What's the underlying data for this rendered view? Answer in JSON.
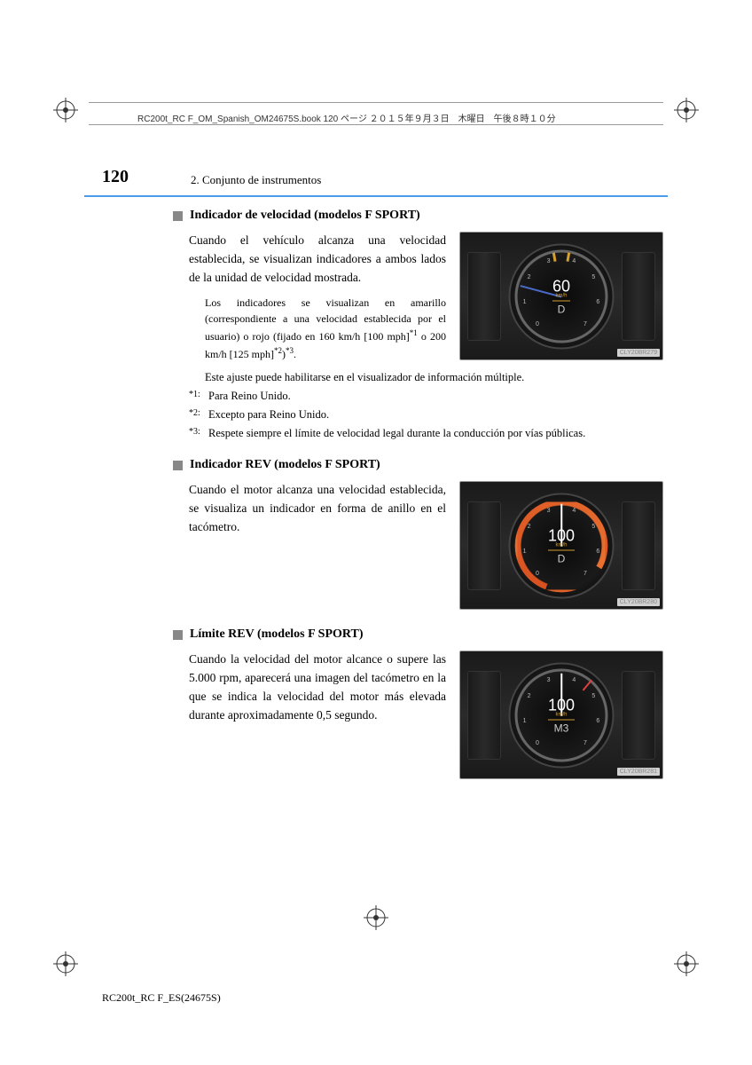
{
  "meta": {
    "header_text": "RC200t_RC F_OM_Spanish_OM24675S.book  120 ページ  ２０１５年９月３日　木曜日　午後８時１０分",
    "page_number": "120",
    "chapter": "2. Conjunto de instrumentos",
    "footer": "RC200t_RC F_ES(24675S)"
  },
  "sections": [
    {
      "heading": "Indicador de velocidad (modelos F SPORT)",
      "body": "Cuando el vehículo alcanza una velocidad establecida, se visualizan indicadores a ambos lados de la unidad de velocidad mostrada.",
      "subtext": "Los indicadores se visualizan en amarillo (correspondiente a una velocidad establecida por el usuario) o rojo (fijado en 160 km/h [100 mph]",
      "subtext_sup1": "*1",
      "subtext_mid": " o 200 km/h [125 mph]",
      "subtext_sup2": "*2",
      "subtext_end": ")",
      "subtext_sup3": "*3",
      "subtext_period": ".",
      "note": "Este ajuste puede habilitarse en el visualizador de información múltiple.",
      "gauge": {
        "speed": "60",
        "unit": "km/h",
        "gear": "D",
        "label": "CLY20BR279",
        "ring_style": "plain",
        "needle": "blue",
        "yellow_marks": true
      }
    },
    {
      "heading": "Indicador REV (modelos F SPORT)",
      "body": "Cuando el motor alcanza una velocidad establecida, se visualiza un indicador en forma de anillo en el tacómetro.",
      "gauge": {
        "speed": "100",
        "unit": "km/h",
        "gear": "D",
        "label": "CLY20BR280",
        "ring_style": "orange",
        "needle": "white"
      }
    },
    {
      "heading": "Límite REV (modelos F SPORT)",
      "body": "Cuando la velocidad del motor alcance o supere las 5.000 rpm, aparecerá una imagen del tacómetro en la que se indica la velocidad del motor más elevada durante aproximadamente 0,5 segundo.",
      "gauge": {
        "speed": "100",
        "unit": "km/h",
        "gear": "M3",
        "label": "CLY20BR281",
        "ring_style": "plain",
        "needle": "white",
        "red_needle": true
      }
    }
  ],
  "footnotes": [
    {
      "marker": "*1:",
      "text": "Para Reino Unido."
    },
    {
      "marker": "*2:",
      "text": "Excepto para Reino Unido."
    },
    {
      "marker": "*3:",
      "text": "Respete siempre el límite de velocidad legal durante la conducción por vías públicas."
    }
  ],
  "tick_numbers": [
    "0",
    "1",
    "2",
    "3",
    "4",
    "5",
    "6",
    "7"
  ],
  "colors": {
    "blue_divider": "#4a9de8",
    "text": "#000000",
    "gauge_bg": "#1a1a1a",
    "orange_ring": "#d85020",
    "yellow_accent": "#d4a030"
  }
}
